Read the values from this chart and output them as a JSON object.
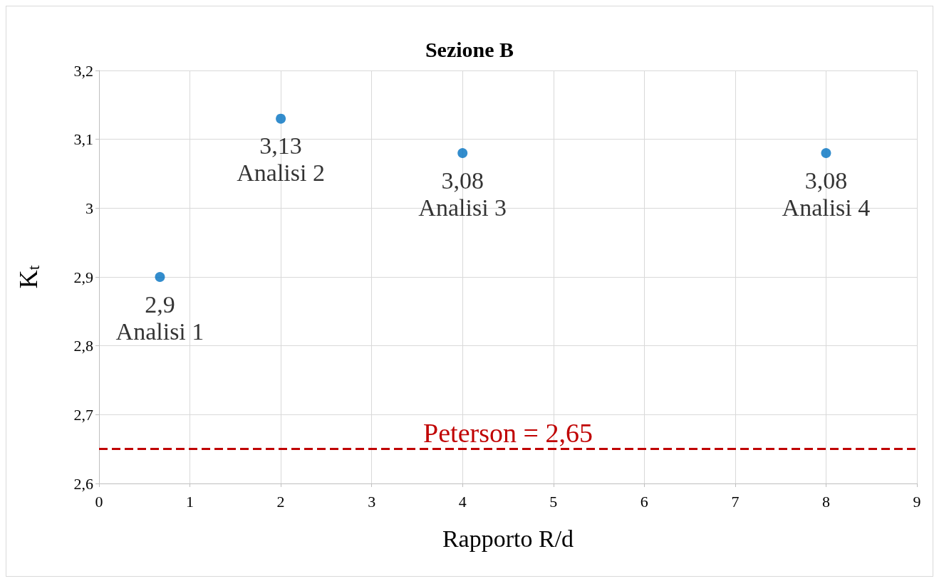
{
  "chart_data": {
    "type": "scatter",
    "title": "Sezione B",
    "xlabel": "Rapporto R/d",
    "ylabel": "K$_{t}$",
    "x": [
      0.67,
      2,
      4,
      8
    ],
    "series": [
      {
        "color": "#0070c0",
        "values": [
          2.9,
          3.13,
          3.08,
          3.08
        ],
        "value_labels": [
          "2,9",
          "3,13",
          "3,08",
          "3,08"
        ]
      }
    ],
    "annotations": [
      {
        "text": "Analisi 1",
        "x": 0.67,
        "y": 2.9
      },
      {
        "text": "Analisi 2",
        "x": 2,
        "y": 3.13
      },
      {
        "text": "Analisi 3",
        "x": 4,
        "y": 3.08
      },
      {
        "text": "Analisi 4",
        "x": 8,
        "y": 3.08
      }
    ],
    "ref_lines": [
      {
        "axis": "y",
        "value": 2.65,
        "label": "Peterson = 2,65",
        "color": "#c00000",
        "line_style": "dashed"
      }
    ],
    "xlim": [
      0,
      9
    ],
    "xticks": [
      0,
      1,
      2,
      3,
      4,
      5,
      6,
      7,
      8,
      9
    ],
    "ylim": [
      2.6,
      3.2
    ],
    "yticks": [
      {
        "value": 2.6,
        "label": "2,6"
      },
      {
        "value": 2.7,
        "label": "2,7"
      },
      {
        "value": 2.8,
        "label": "2,8"
      },
      {
        "value": 2.9,
        "label": "2,9"
      },
      {
        "value": 3,
        "label": "3"
      },
      {
        "value": 3.1,
        "label": "3,1"
      },
      {
        "value": 3.2,
        "label": "3,2"
      }
    ],
    "grid": true,
    "marker": "circle"
  }
}
